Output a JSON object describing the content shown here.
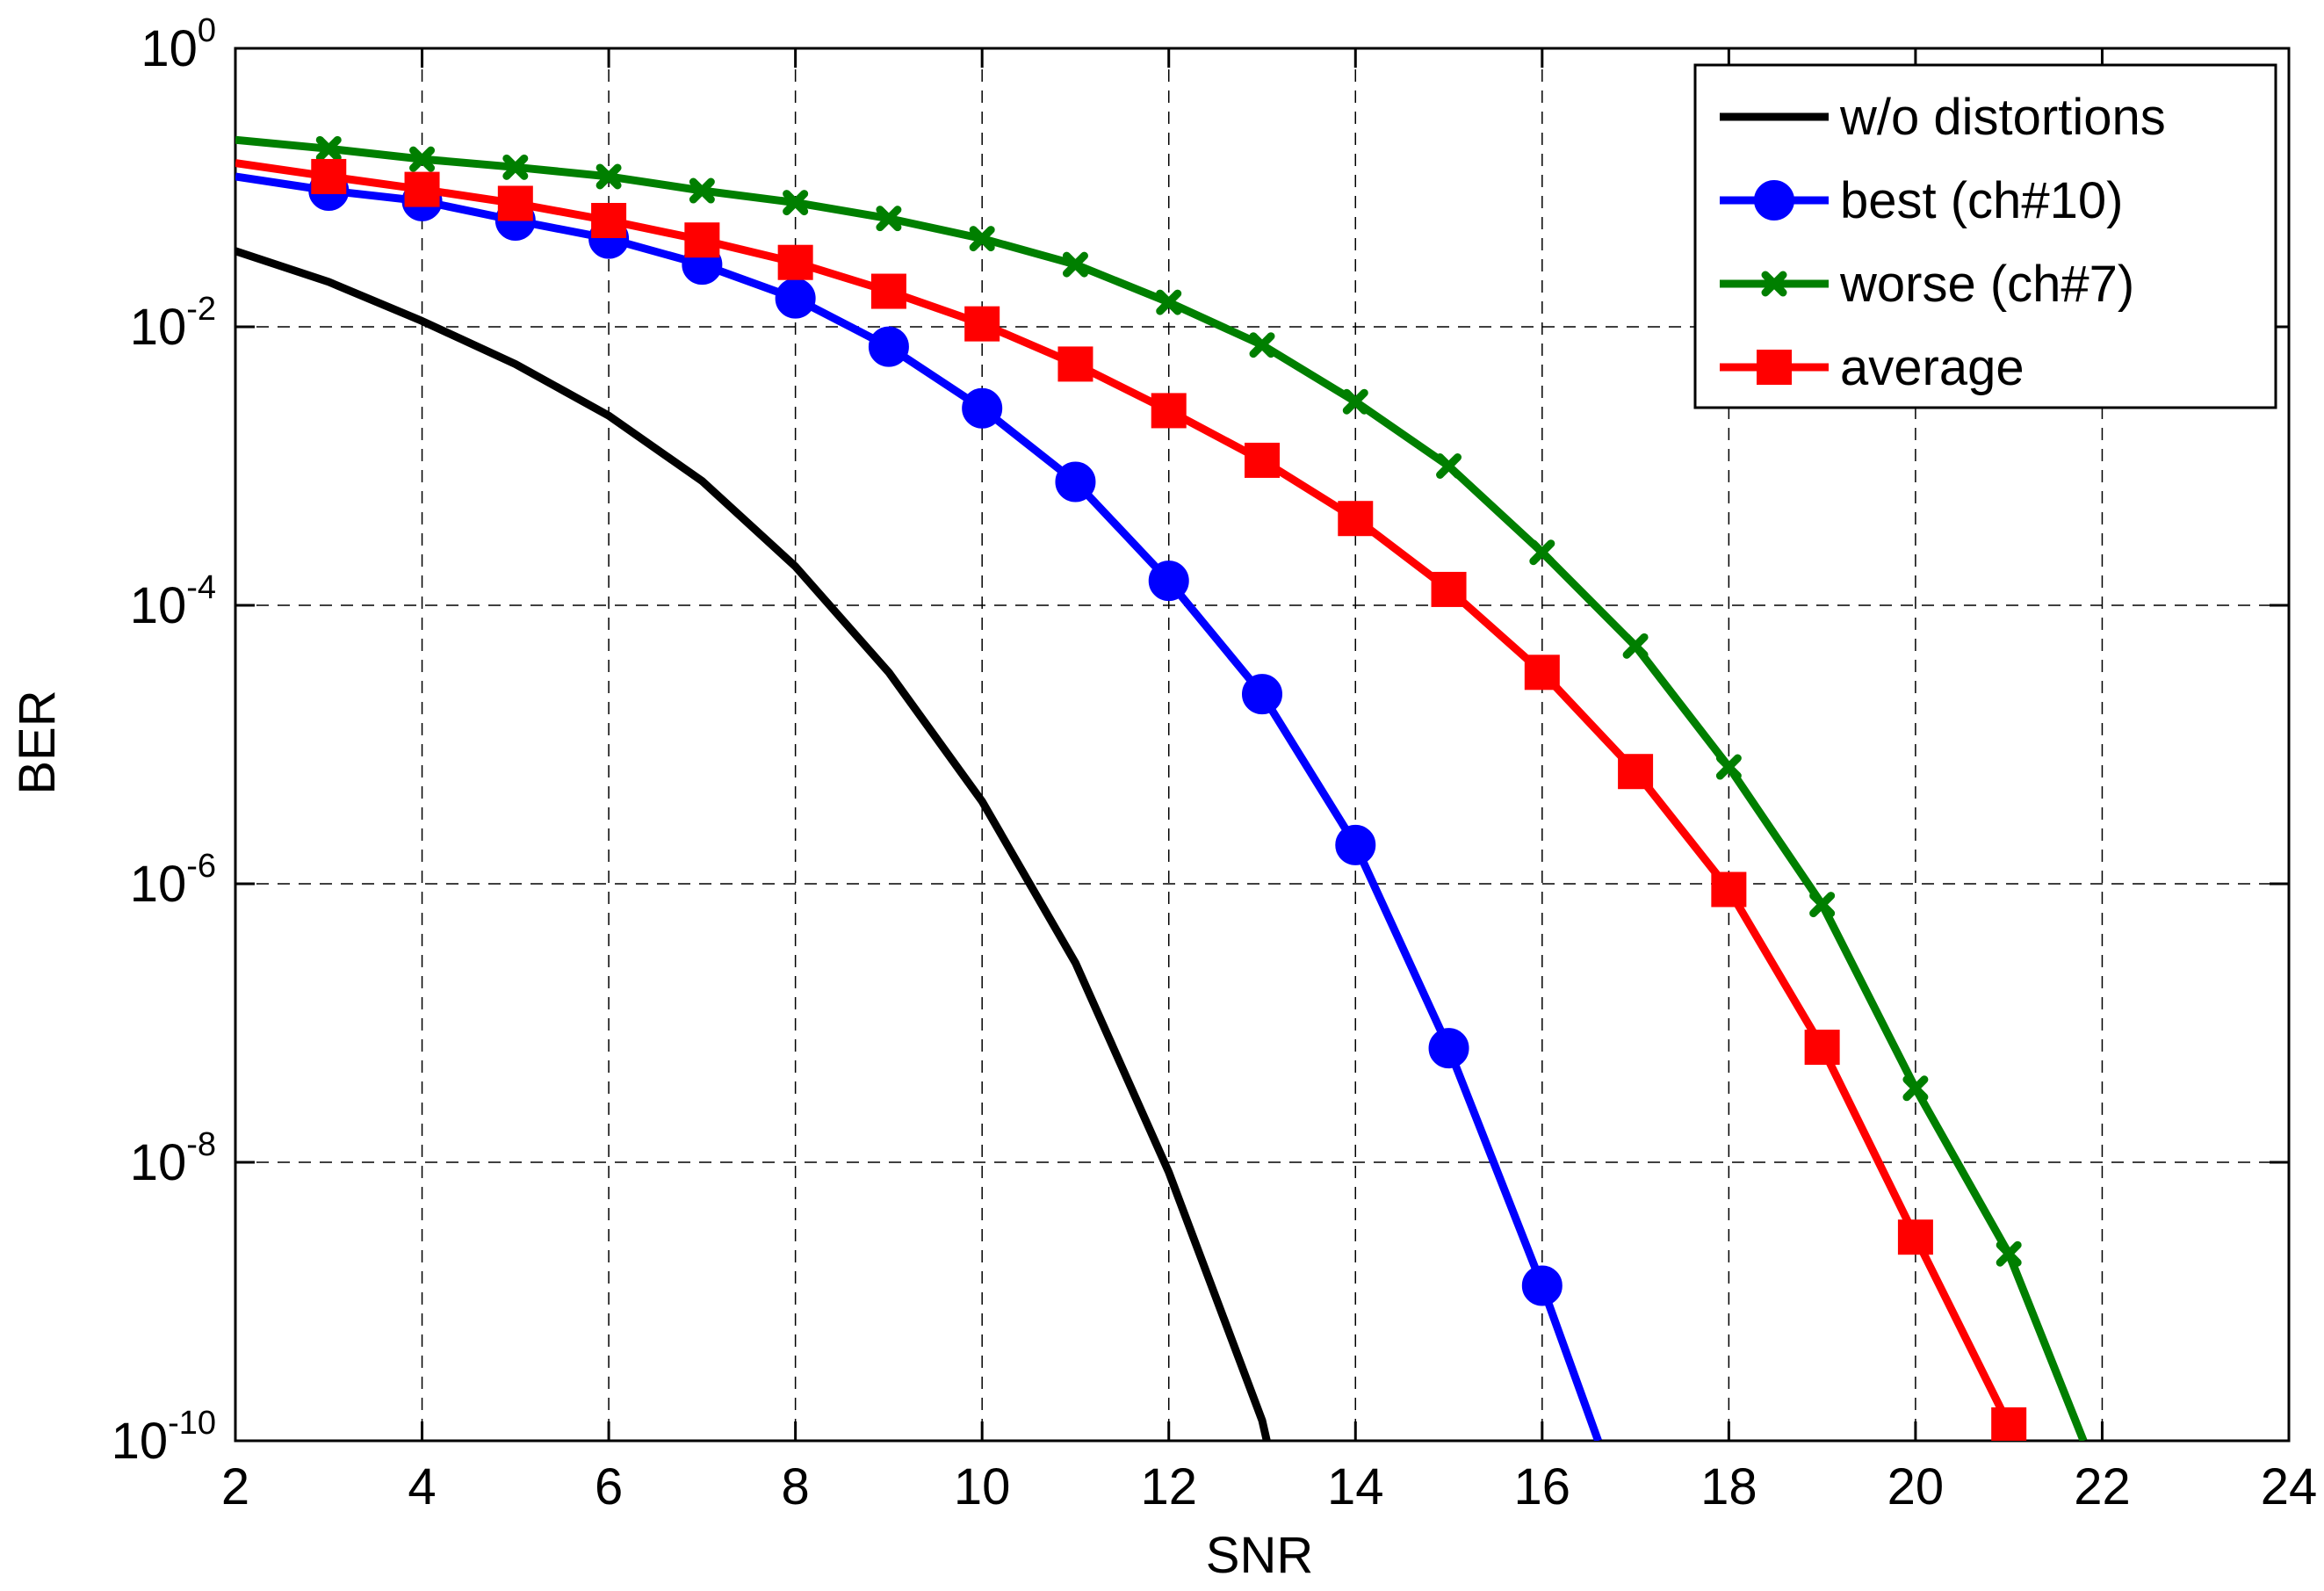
{
  "chart_data": {
    "type": "line",
    "xlabel": "SNR",
    "ylabel": "BER",
    "xlim": [
      2,
      24
    ],
    "ylim": [
      1e-10,
      1
    ],
    "yscale": "log",
    "grid": true,
    "legend_position": "top-right",
    "x_ticks": [
      "2",
      "4",
      "6",
      "8",
      "10",
      "12",
      "14",
      "16",
      "18",
      "20",
      "22",
      "24"
    ],
    "y_ticks": [
      {
        "base": "10",
        "exp": "0"
      },
      {
        "base": "10",
        "exp": "-2"
      },
      {
        "base": "10",
        "exp": "-4"
      },
      {
        "base": "10",
        "exp": "-6"
      },
      {
        "base": "10",
        "exp": "-8"
      },
      {
        "base": "10",
        "exp": "-10"
      }
    ],
    "series": [
      {
        "name": "w/o distortions",
        "color": "#000000",
        "marker": "none",
        "x": [
          2,
          3,
          4,
          5,
          6,
          7,
          8,
          9,
          10,
          11,
          12,
          13,
          13.05
        ],
        "y": [
          0.035,
          0.021,
          0.011,
          0.0054,
          0.0023,
          0.00078,
          0.00019,
          3.3e-05,
          3.9e-06,
          2.7e-07,
          8.5e-09,
          1.4e-10,
          1e-10
        ]
      },
      {
        "name": "best (ch#10)",
        "color": "#0000ff",
        "marker": "circle",
        "x": [
          2,
          3,
          4,
          5,
          6,
          7,
          8,
          9,
          10,
          11,
          12,
          13,
          14,
          15,
          16,
          16.6
        ],
        "y": [
          0.12,
          0.095,
          0.08,
          0.058,
          0.043,
          0.028,
          0.016,
          0.0072,
          0.0026,
          0.00077,
          0.00015,
          2.3e-05,
          1.9e-06,
          6.6e-08,
          1.3e-09,
          1e-10
        ]
      },
      {
        "name": "worse (ch#7)",
        "color": "#007f00",
        "marker": "x",
        "x": [
          2,
          3,
          4,
          5,
          6,
          7,
          8,
          9,
          10,
          11,
          12,
          13,
          14,
          15,
          16,
          17,
          18,
          19,
          20,
          21,
          21.8
        ],
        "y": [
          0.22,
          0.19,
          0.16,
          0.14,
          0.12,
          0.095,
          0.078,
          0.06,
          0.043,
          0.028,
          0.015,
          0.0074,
          0.0029,
          0.001,
          0.00024,
          5.1e-05,
          6.9e-06,
          7.1e-07,
          3.4e-08,
          2.2e-09,
          1e-10
        ]
      },
      {
        "name": "average",
        "color": "#ff0000",
        "marker": "square",
        "x": [
          2,
          3,
          4,
          5,
          6,
          7,
          8,
          9,
          10,
          11,
          12,
          13,
          14,
          15,
          16,
          17,
          18,
          19,
          20,
          21
        ],
        "y": [
          0.15,
          0.12,
          0.097,
          0.077,
          0.058,
          0.042,
          0.029,
          0.018,
          0.0105,
          0.0054,
          0.0025,
          0.0011,
          0.00042,
          0.00013,
          3.3e-05,
          6.4e-06,
          9.1e-07,
          6.7e-08,
          2.9e-09,
          1.3e-10
        ]
      }
    ]
  }
}
